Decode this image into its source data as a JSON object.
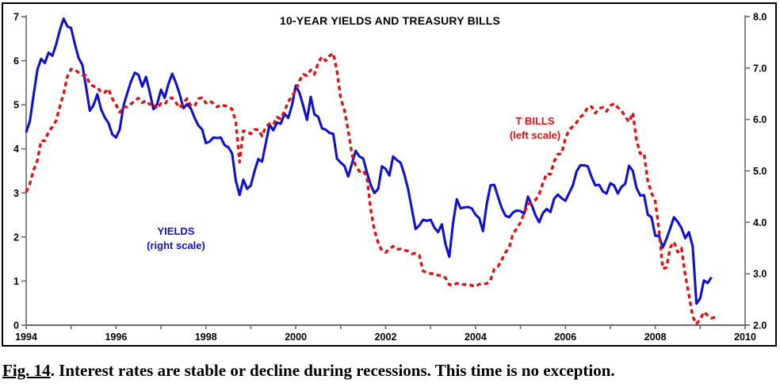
{
  "figure": {
    "title": "10-YEAR YIELDS AND TREASURY BILLS",
    "caption": {
      "label": "Fig. 14",
      "text": ". Interest rates are stable or decline during recessions. This time is no exception."
    }
  },
  "chart_data": {
    "type": "line",
    "title": "10-YEAR YIELDS AND TREASURY BILLS",
    "x_axis": {
      "start_year": 1994,
      "end_year": 2010,
      "tick_years": [
        1994,
        1995,
        1996,
        1997,
        1998,
        1999,
        2000,
        2001,
        2002,
        2003,
        2004,
        2005,
        2006,
        2007,
        2008,
        2009,
        2010
      ],
      "tick_labels": [
        "1994",
        "1996",
        "1998",
        "2000",
        "2002",
        "2004",
        "2006",
        "2008",
        "2010"
      ],
      "label_years": [
        1994,
        1996,
        1998,
        2000,
        2002,
        2004,
        2006,
        2008,
        2010
      ]
    },
    "left_axis": {
      "used_by": "T BILLS",
      "min": 0,
      "max": 7,
      "tick_values": [
        0,
        1,
        2,
        3,
        4,
        5,
        6,
        7
      ],
      "tick_labels": [
        "0",
        "1",
        "2",
        "3",
        "4",
        "5",
        "6",
        "7"
      ]
    },
    "right_axis": {
      "used_by": "YIELDS",
      "min": 2.0,
      "max": 8.0,
      "tick_values": [
        2,
        3,
        4,
        5,
        6,
        7,
        8
      ],
      "tick_labels": [
        "2.0",
        "3.0",
        "4.0",
        "5.0",
        "6.0",
        "7.0",
        "8.0"
      ]
    },
    "annotations": [
      {
        "name": "tbills-label",
        "color": "#e01010",
        "lines": [
          "T BILLS",
          "(left scale)"
        ]
      },
      {
        "name": "yields-label",
        "color": "#1010d0",
        "lines": [
          "YIELDS",
          "(right scale)"
        ]
      }
    ],
    "series": [
      {
        "name": "YIELDS",
        "description": "10-year Treasury yield, monthly, right scale",
        "axis": "right",
        "color": "#1010d0",
        "style": "solid",
        "start_year": 1994,
        "interval_months": 1,
        "values": [
          5.75,
          5.97,
          6.48,
          6.97,
          7.18,
          7.1,
          7.3,
          7.24,
          7.46,
          7.74,
          7.96,
          7.81,
          7.78,
          7.47,
          7.2,
          7.06,
          6.63,
          6.17,
          6.28,
          6.49,
          6.2,
          6.04,
          5.93,
          5.71,
          5.65,
          5.81,
          6.27,
          6.51,
          6.74,
          6.91,
          6.87,
          6.64,
          6.83,
          6.53,
          6.2,
          6.3,
          6.58,
          6.42,
          6.69,
          6.89,
          6.71,
          6.49,
          6.22,
          6.3,
          6.21,
          6.03,
          5.88,
          5.81,
          5.54,
          5.57,
          5.65,
          5.64,
          5.65,
          5.5,
          5.46,
          5.34,
          4.81,
          4.53,
          4.83,
          4.65,
          4.72,
          5.0,
          5.23,
          5.18,
          5.54,
          5.9,
          5.79,
          5.94,
          5.92,
          6.11,
          6.03,
          6.28,
          6.66,
          6.52,
          6.26,
          5.99,
          6.44,
          6.1,
          6.05,
          5.83,
          5.8,
          5.74,
          5.72,
          5.24,
          5.16,
          5.1,
          4.89,
          5.14,
          5.39,
          5.28,
          5.24,
          4.97,
          4.73,
          4.57,
          4.65,
          5.09,
          5.04,
          4.91,
          5.28,
          5.21,
          5.16,
          4.93,
          4.65,
          4.26,
          3.87,
          3.94,
          4.05,
          4.03,
          4.05,
          3.9,
          3.81,
          3.96,
          3.57,
          3.33,
          3.98,
          4.45,
          4.27,
          4.29,
          4.3,
          4.27,
          4.15,
          4.08,
          3.83,
          4.35,
          4.72,
          4.73,
          4.5,
          4.28,
          4.13,
          4.1,
          4.19,
          4.23,
          4.22,
          4.17,
          4.5,
          4.34,
          4.14,
          4.0,
          4.18,
          4.26,
          4.2,
          4.46,
          4.54,
          4.47,
          4.42,
          4.57,
          4.72,
          4.99,
          5.11,
          5.11,
          5.09,
          4.88,
          4.72,
          4.73,
          4.6,
          4.56,
          4.76,
          4.72,
          4.56,
          4.69,
          4.75,
          5.1,
          5.0,
          4.67,
          4.52,
          4.53,
          4.15,
          4.1,
          3.74,
          3.74,
          3.51,
          3.68,
          3.88,
          4.1,
          4.01,
          3.89,
          3.69,
          3.81,
          3.53,
          2.42,
          2.52,
          2.87,
          2.82,
          2.93
        ]
      },
      {
        "name": "T BILLS",
        "description": "3-month Treasury bill rate, monthly, left scale",
        "axis": "left",
        "color": "#e01010",
        "style": "dashed",
        "start_year": 1994,
        "interval_months": 1,
        "values": [
          3.02,
          3.21,
          3.52,
          3.74,
          4.19,
          4.18,
          4.39,
          4.5,
          4.64,
          4.96,
          5.25,
          5.64,
          5.81,
          5.8,
          5.73,
          5.67,
          5.67,
          5.47,
          5.42,
          5.4,
          5.28,
          5.28,
          5.36,
          5.14,
          5.0,
          4.83,
          4.96,
          4.95,
          5.02,
          5.09,
          5.15,
          5.05,
          5.09,
          5.01,
          5.03,
          4.91,
          5.03,
          5.01,
          5.14,
          5.16,
          5.05,
          4.93,
          5.05,
          5.14,
          4.98,
          4.97,
          5.14,
          5.16,
          5.04,
          5.09,
          5.03,
          4.95,
          5.0,
          4.98,
          4.96,
          4.9,
          4.61,
          3.7,
          4.41,
          4.39,
          4.34,
          4.44,
          4.44,
          4.29,
          4.5,
          4.57,
          4.55,
          4.72,
          4.68,
          4.86,
          5.07,
          5.2,
          5.32,
          5.55,
          5.69,
          5.66,
          5.79,
          5.69,
          5.96,
          6.09,
          6.0,
          6.11,
          6.17,
          5.77,
          5.15,
          4.88,
          4.42,
          3.87,
          3.62,
          3.49,
          3.51,
          3.36,
          2.64,
          2.16,
          1.87,
          1.69,
          1.65,
          1.73,
          1.79,
          1.72,
          1.73,
          1.7,
          1.68,
          1.62,
          1.63,
          1.58,
          1.23,
          1.19,
          1.17,
          1.17,
          1.13,
          1.13,
          1.07,
          0.92,
          0.9,
          0.95,
          0.94,
          0.92,
          0.93,
          0.9,
          0.88,
          0.93,
          0.94,
          0.94,
          1.02,
          1.27,
          1.33,
          1.48,
          1.65,
          1.76,
          2.07,
          2.19,
          2.33,
          2.54,
          2.74,
          2.78,
          2.84,
          2.97,
          3.22,
          3.44,
          3.42,
          3.71,
          3.88,
          3.89,
          4.24,
          4.43,
          4.51,
          4.6,
          4.72,
          4.79,
          4.95,
          4.96,
          4.81,
          4.92,
          4.94,
          4.85,
          4.98,
          5.03,
          4.94,
          4.87,
          4.73,
          4.61,
          4.82,
          4.2,
          3.89,
          3.9,
          3.27,
          3.0,
          2.82,
          2.17,
          1.28,
          1.31,
          1.76,
          1.89,
          1.66,
          1.75,
          1.15,
          0.69,
          0.19,
          0.03,
          0.13,
          0.3,
          0.22,
          0.16,
          0.18
        ]
      }
    ],
    "layout": {
      "grid": false,
      "legend_position": "inline-annotations"
    }
  }
}
